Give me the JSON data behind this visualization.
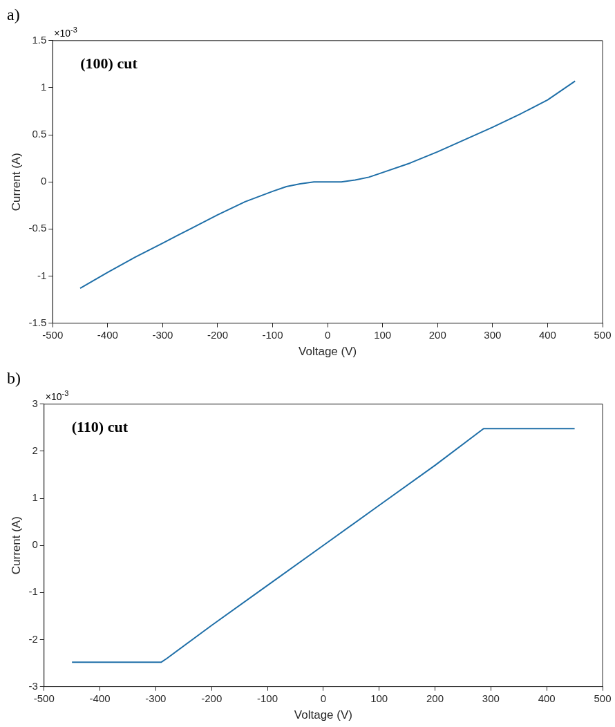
{
  "chart_data": [
    {
      "type": "line",
      "title": "a)",
      "xlabel": "Voltage (V)",
      "ylabel": "Current (A)",
      "annotations": [
        "(100) cut",
        "×10$^{-3}$"
      ],
      "x": [
        -450,
        -400,
        -350,
        -300,
        -250,
        -200,
        -150,
        -100,
        -75,
        -50,
        -25,
        0,
        25,
        50,
        75,
        100,
        150,
        200,
        250,
        300,
        350,
        400,
        450
      ],
      "series": [
        {
          "color": "#1f6fa8",
          "values": [
            -1.13,
            -0.96,
            -0.8,
            -0.65,
            -0.5,
            -0.35,
            -0.21,
            -0.1,
            -0.05,
            -0.02,
            0,
            0,
            0,
            0.02,
            0.05,
            0.1,
            0.2,
            0.32,
            0.45,
            0.58,
            0.72,
            0.87,
            1.07
          ]
        }
      ],
      "xlim": [
        -500,
        500
      ],
      "xticks": [
        -500,
        -400,
        -300,
        -200,
        -100,
        0,
        100,
        200,
        300,
        400,
        500
      ],
      "ylim": [
        -1.5,
        1.5
      ],
      "yticks": [
        -1.5,
        -1,
        -0.5,
        0,
        0.5,
        1,
        1.5
      ],
      "grid": false,
      "legend": false,
      "marker": "none",
      "line_style": "solid"
    },
    {
      "type": "line",
      "title": "b)",
      "xlabel": "Voltage (V)",
      "ylabel": "Current (A)",
      "annotations": [
        "(110) cut",
        "×10$^{-3}$"
      ],
      "x": [
        -450,
        -290,
        -280,
        -200,
        -100,
        0,
        100,
        200,
        287,
        450
      ],
      "series": [
        {
          "color": "#1f6fa8",
          "values": [
            -2.48,
            -2.48,
            -2.4,
            -1.7,
            -0.85,
            0,
            0.85,
            1.7,
            2.48,
            2.48
          ]
        }
      ],
      "xlim": [
        -500,
        500
      ],
      "xticks": [
        -500,
        -400,
        -300,
        -200,
        -100,
        0,
        100,
        200,
        300,
        400,
        500
      ],
      "ylim": [
        -3,
        3
      ],
      "yticks": [
        -3,
        -2,
        -1,
        0,
        1,
        2,
        3
      ],
      "grid": false,
      "legend": false,
      "marker": "none",
      "line_style": "solid"
    }
  ]
}
